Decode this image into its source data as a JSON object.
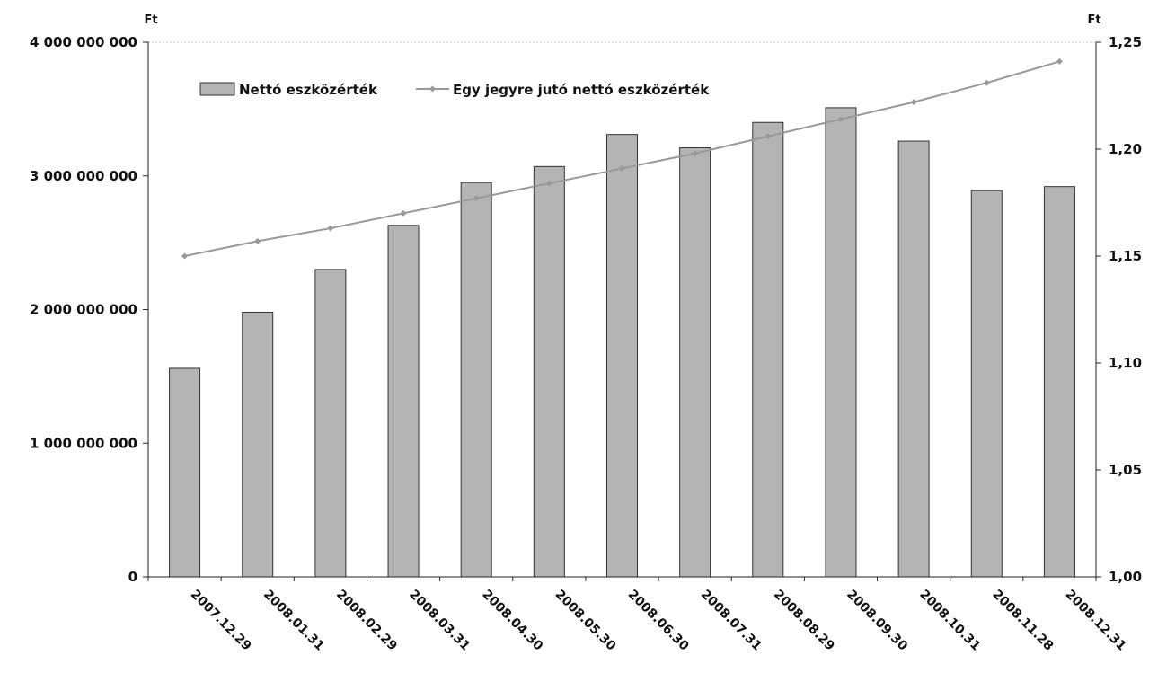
{
  "chart_data": {
    "type": "bar",
    "categories": [
      "2007.12.29",
      "2008.01.31",
      "2008.02.29",
      "2008.03.31",
      "2008.04.30",
      "2008.05.30",
      "2008.06.30",
      "2008.07.31",
      "2008.08.29",
      "2008.09.30",
      "2008.10.31",
      "2008.11.28",
      "2008.12.31"
    ],
    "series": [
      {
        "name": "Nettó eszközérték",
        "kind": "bar",
        "axis": "left",
        "color": "#b4b4b4",
        "values": [
          1560000000,
          1980000000,
          2300000000,
          2630000000,
          2950000000,
          3070000000,
          3310000000,
          3210000000,
          3400000000,
          3510000000,
          3260000000,
          2890000000,
          2920000000
        ]
      },
      {
        "name": "Egy jegyre jutó nettó eszközérték",
        "kind": "line",
        "axis": "right",
        "color": "#999999",
        "values": [
          1.15,
          1.157,
          1.163,
          1.17,
          1.177,
          1.184,
          1.191,
          1.198,
          1.206,
          1.214,
          1.222,
          1.231,
          1.241
        ]
      }
    ],
    "left_axis": {
      "unit": "Ft",
      "ylim": [
        0,
        4000000000
      ],
      "ticks": [
        {
          "value": 0,
          "label": "0"
        },
        {
          "value": 1000000000,
          "label": "1 000 000 000"
        },
        {
          "value": 2000000000,
          "label": "2 000 000 000"
        },
        {
          "value": 3000000000,
          "label": "3 000 000 000"
        },
        {
          "value": 4000000000,
          "label": "4 000 000 000"
        }
      ]
    },
    "right_axis": {
      "unit": "Ft",
      "ylim": [
        1.0,
        1.25
      ],
      "ticks": [
        {
          "value": 1.0,
          "label": "1,00"
        },
        {
          "value": 1.05,
          "label": "1,05"
        },
        {
          "value": 1.1,
          "label": "1,10"
        },
        {
          "value": 1.15,
          "label": "1,15"
        },
        {
          "value": 1.2,
          "label": "1,20"
        },
        {
          "value": 1.25,
          "label": "1,25"
        }
      ]
    },
    "legend_position": "top-left",
    "grid": false
  }
}
